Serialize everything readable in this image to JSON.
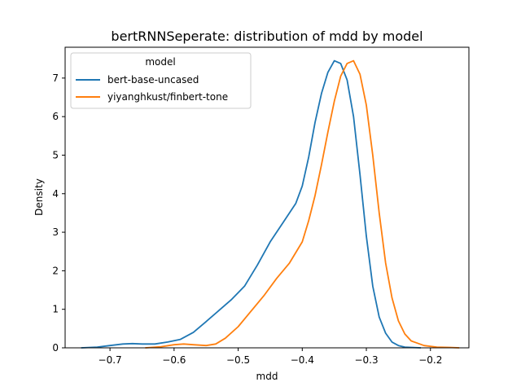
{
  "chart_data": {
    "type": "line",
    "title": "bertRNNSeperate: distribution of mdd by model",
    "xlabel": "mdd",
    "ylabel": "Density",
    "xlim": [
      -0.77,
      -0.14
    ],
    "ylim": [
      0,
      7.8
    ],
    "xticks": [
      -0.7,
      -0.6,
      -0.5,
      -0.4,
      -0.3,
      -0.2
    ],
    "xtick_labels": [
      "−0.7",
      "−0.6",
      "−0.5",
      "−0.4",
      "−0.3",
      "−0.2"
    ],
    "yticks": [
      0,
      1,
      2,
      3,
      4,
      5,
      6,
      7
    ],
    "ytick_labels": [
      "0",
      "1",
      "2",
      "3",
      "4",
      "5",
      "6",
      "7"
    ],
    "legend": {
      "title": "model",
      "position": "top-left"
    },
    "grid": false,
    "series": [
      {
        "name": "bert-base-uncased",
        "color": "#1f77b4",
        "x": [
          -0.745,
          -0.72,
          -0.7,
          -0.68,
          -0.665,
          -0.65,
          -0.63,
          -0.61,
          -0.59,
          -0.57,
          -0.55,
          -0.53,
          -0.51,
          -0.49,
          -0.47,
          -0.45,
          -0.43,
          -0.41,
          -0.4,
          -0.39,
          -0.38,
          -0.37,
          -0.36,
          -0.35,
          -0.34,
          -0.33,
          -0.32,
          -0.31,
          -0.3,
          -0.29,
          -0.28,
          -0.27,
          -0.26,
          -0.25,
          -0.24,
          -0.23,
          -0.215
        ],
        "y": [
          0.0,
          0.02,
          0.06,
          0.1,
          0.11,
          0.1,
          0.1,
          0.15,
          0.22,
          0.4,
          0.68,
          0.97,
          1.26,
          1.6,
          2.15,
          2.75,
          3.25,
          3.75,
          4.2,
          4.95,
          5.85,
          6.6,
          7.15,
          7.45,
          7.38,
          6.95,
          6.0,
          4.5,
          2.9,
          1.6,
          0.8,
          0.38,
          0.15,
          0.06,
          0.02,
          0.01,
          0.0
        ]
      },
      {
        "name": "yiyanghkust/finbert-tone",
        "color": "#ff7f0e",
        "x": [
          -0.645,
          -0.62,
          -0.6,
          -0.585,
          -0.57,
          -0.55,
          -0.535,
          -0.52,
          -0.5,
          -0.48,
          -0.46,
          -0.44,
          -0.42,
          -0.4,
          -0.39,
          -0.38,
          -0.37,
          -0.36,
          -0.35,
          -0.34,
          -0.33,
          -0.32,
          -0.31,
          -0.3,
          -0.29,
          -0.28,
          -0.27,
          -0.26,
          -0.25,
          -0.24,
          -0.23,
          -0.21,
          -0.19,
          -0.17,
          -0.155
        ],
        "y": [
          0.0,
          0.03,
          0.08,
          0.1,
          0.08,
          0.06,
          0.1,
          0.25,
          0.55,
          0.95,
          1.35,
          1.8,
          2.2,
          2.75,
          3.3,
          3.95,
          4.75,
          5.6,
          6.4,
          7.05,
          7.38,
          7.45,
          7.1,
          6.3,
          5.0,
          3.5,
          2.2,
          1.3,
          0.7,
          0.36,
          0.18,
          0.06,
          0.02,
          0.01,
          0.0
        ]
      }
    ]
  }
}
